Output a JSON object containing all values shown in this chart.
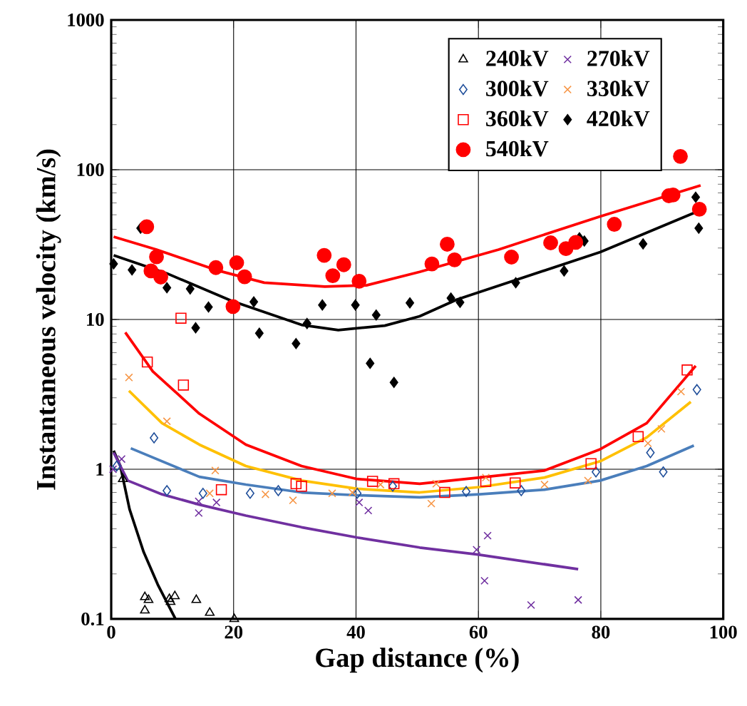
{
  "chart_data": {
    "type": "scatter",
    "xlabel": "Gap distance (%)",
    "ylabel": "Instantaneous velocity (km/s)",
    "xlim": [
      0,
      100
    ],
    "xticks": [
      0,
      20,
      40,
      60,
      80,
      100
    ],
    "ylim": [
      0.1,
      1000
    ],
    "yticks": [
      0.1,
      1,
      10,
      100,
      1000
    ],
    "log": "y",
    "grid": true,
    "legend": "top right",
    "series": [
      {
        "name": "240kV",
        "marker": "triangle",
        "color": "#000000",
        "x": [
          1.9,
          5.5,
          6.1,
          5.5,
          9.5,
          10.4,
          9.7,
          13.9,
          16.1,
          20.1
        ],
        "values": [
          0.86,
          0.14,
          0.134,
          0.114,
          0.136,
          0.142,
          0.13,
          0.134,
          0.11,
          0.1
        ]
      },
      {
        "name": "270kV",
        "marker": "cross",
        "color": "#7030a0",
        "x": [
          0.3,
          1.7,
          14.3,
          14.3,
          17.2,
          40.5,
          42.0,
          59.7,
          61.5,
          61.0,
          68.6,
          76.3
        ],
        "values": [
          1.0,
          1.17,
          0.61,
          0.51,
          0.6,
          0.6,
          0.53,
          0.29,
          0.36,
          0.18,
          0.124,
          0.134
        ]
      },
      {
        "name": "300kV",
        "marker": "diamond",
        "color": "#1f4e9a",
        "x": [
          0.9,
          7.0,
          9.1,
          15.0,
          22.7,
          27.3,
          40.2,
          46.0,
          58.0,
          67.0,
          79.2,
          88.1,
          90.2,
          95.7
        ],
        "values": [
          1.05,
          1.62,
          0.72,
          0.69,
          0.69,
          0.72,
          0.69,
          0.77,
          0.71,
          0.72,
          0.96,
          1.29,
          0.96,
          3.4
        ]
      },
      {
        "name": "330kV",
        "marker": "cross",
        "color": "#f79646",
        "x": [
          2.9,
          9.1,
          17.0,
          16.1,
          25.2,
          29.7,
          36.1,
          39.4,
          44.0,
          53.1,
          52.3,
          61.2,
          70.8,
          77.9,
          87.7,
          89.9,
          93.1
        ],
        "values": [
          4.1,
          2.09,
          0.98,
          0.69,
          0.68,
          0.62,
          0.69,
          0.7,
          0.79,
          0.8,
          0.59,
          0.88,
          0.79,
          0.84,
          1.49,
          1.86,
          3.3
        ]
      },
      {
        "name": "360kV",
        "marker": "square",
        "color": "#ff0000",
        "x": [
          5.9,
          11.4,
          11.8,
          18.0,
          30.2,
          31.1,
          42.7,
          46.2,
          54.5,
          61.2,
          66.0,
          78.4,
          86.1,
          94.1
        ],
        "values": [
          5.2,
          10.2,
          3.65,
          0.73,
          0.8,
          0.77,
          0.83,
          0.8,
          0.7,
          0.83,
          0.81,
          1.09,
          1.65,
          4.6
        ]
      },
      {
        "name": "420kV",
        "marker": "diamond",
        "color": "#000000",
        "x": [
          0.4,
          3.4,
          4.8,
          9.1,
          12.9,
          15.9,
          13.8,
          23.3,
          24.2,
          30.2,
          32.0,
          34.5,
          39.9,
          43.3,
          42.3,
          46.2,
          48.8,
          55.5,
          57.0,
          66.1,
          74.0,
          76.5,
          77.3,
          86.9,
          95.5,
          96.0
        ],
        "values": [
          23.5,
          21.4,
          40.7,
          16.3,
          16.0,
          12.1,
          8.8,
          13.1,
          8.1,
          6.9,
          9.4,
          12.5,
          12.5,
          10.7,
          5.1,
          3.8,
          12.9,
          13.9,
          13.0,
          17.6,
          21.1,
          35.1,
          33.4,
          32.0,
          65.5,
          40.7
        ]
      },
      {
        "name": "540kV",
        "marker": "circle",
        "color": "#ff0000",
        "x": [
          5.8,
          7.4,
          6.5,
          8.1,
          17.1,
          20.5,
          21.8,
          19.9,
          34.8,
          36.2,
          38.0,
          40.5,
          52.4,
          54.9,
          56.1,
          65.4,
          71.8,
          74.3,
          75.9,
          82.2,
          91.1,
          91.8,
          93.0,
          96.1
        ],
        "values": [
          41.6,
          26.2,
          21.1,
          19.2,
          22.2,
          23.9,
          19.3,
          12.2,
          26.8,
          19.6,
          23.2,
          18.0,
          23.5,
          31.8,
          25.0,
          26.1,
          32.5,
          29.7,
          32.7,
          43.2,
          67.0,
          67.8,
          122.7,
          54.5
        ]
      },
      {
        "type": "line",
        "color": "#000000",
        "x": [
          0.4,
          1.5,
          3.0,
          5.3,
          7.6,
          10.5
        ],
        "values": [
          1.33,
          1.05,
          0.54,
          0.28,
          0.17,
          0.1
        ]
      },
      {
        "type": "line",
        "color": "#7030a0",
        "x": [
          0.4,
          2.7,
          8.3,
          14.4,
          22.0,
          31.1,
          40.2,
          50.4,
          59.7,
          76.3
        ],
        "values": [
          1.29,
          0.84,
          0.68,
          0.58,
          0.49,
          0.41,
          0.35,
          0.3,
          0.27,
          0.215
        ]
      },
      {
        "type": "line",
        "color": "#4a7ebb",
        "x": [
          3.2,
          14.4,
          22.0,
          31.1,
          40.2,
          50.4,
          60.2,
          70.8,
          79.9,
          87.5,
          95.2
        ],
        "values": [
          1.38,
          0.89,
          0.79,
          0.7,
          0.67,
          0.65,
          0.68,
          0.73,
          0.84,
          1.05,
          1.44
        ]
      },
      {
        "type": "line",
        "color": "#ffc000",
        "x": [
          2.9,
          8.3,
          14.4,
          22.0,
          31.1,
          40.2,
          50.4,
          60.2,
          70.8,
          79.9,
          87.5,
          94.7
        ],
        "values": [
          3.34,
          2.03,
          1.46,
          1.05,
          0.84,
          0.74,
          0.7,
          0.76,
          0.88,
          1.13,
          1.63,
          2.82
        ]
      },
      {
        "type": "line",
        "color": "#ff0000",
        "x": [
          2.3,
          6.8,
          14.4,
          22.0,
          31.1,
          40.2,
          50.4,
          60.2,
          70.8,
          79.9,
          87.5,
          95.5
        ],
        "values": [
          8.2,
          4.5,
          2.35,
          1.46,
          1.05,
          0.86,
          0.8,
          0.88,
          0.98,
          1.36,
          2.03,
          4.9
        ]
      },
      {
        "type": "line",
        "color": "#000000",
        "x": [
          0.4,
          9.1,
          19.7,
          31.1,
          37.1,
          44.7,
          50.4,
          56.5,
          79.9,
          95.8
        ],
        "values": [
          26.8,
          20.3,
          13.3,
          9.2,
          8.5,
          9.1,
          10.5,
          13.6,
          28.2,
          52.6
        ]
      },
      {
        "type": "line",
        "color": "#ff0000",
        "x": [
          0.4,
          7.4,
          17.1,
          25.0,
          34.9,
          41.7,
          50.4,
          63.3,
          79.9,
          96.3
        ],
        "values": [
          35.7,
          29.3,
          21.4,
          17.6,
          16.6,
          16.9,
          20.8,
          29.3,
          48.8,
          78.5
        ]
      }
    ]
  }
}
